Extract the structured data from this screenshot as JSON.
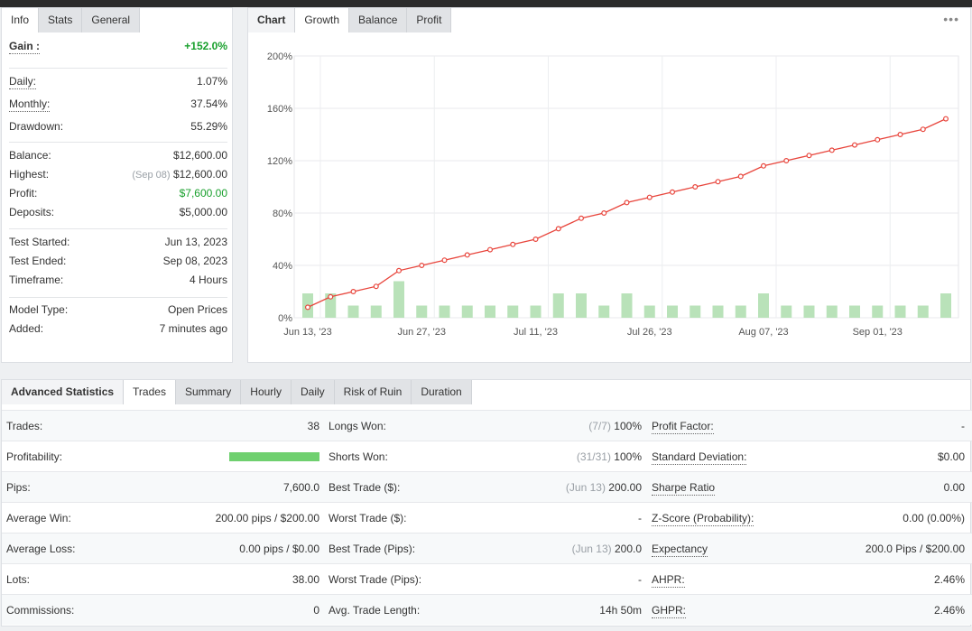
{
  "info_panel": {
    "tabs": [
      {
        "label": "Info"
      },
      {
        "label": "Stats"
      },
      {
        "label": "General"
      }
    ],
    "gain": {
      "label": "Gain :",
      "value": "+152.0%"
    },
    "daily": {
      "label": "Daily:",
      "value": "1.07%"
    },
    "monthly": {
      "label": "Monthly:",
      "value": "37.54%"
    },
    "drawdown": {
      "label": "Drawdown:",
      "value": "55.29%"
    },
    "balance": {
      "label": "Balance:",
      "value": "$12,600.00"
    },
    "highest": {
      "label": "Highest:",
      "date": "(Sep 08)",
      "value": "$12,600.00"
    },
    "profit": {
      "label": "Profit:",
      "value": "$7,600.00"
    },
    "deposits": {
      "label": "Deposits:",
      "value": "$5,000.00"
    },
    "test_started": {
      "label": "Test Started:",
      "value": "Jun 13, 2023"
    },
    "test_ended": {
      "label": "Test Ended:",
      "value": "Sep 08, 2023"
    },
    "timeframe": {
      "label": "Timeframe:",
      "value": "4 Hours"
    },
    "model_type": {
      "label": "Model Type:",
      "value": "Open Prices"
    },
    "added": {
      "label": "Added:",
      "value": "7 minutes ago"
    }
  },
  "chart_panel": {
    "tabs": [
      {
        "label": "Chart"
      },
      {
        "label": "Growth"
      },
      {
        "label": "Balance"
      },
      {
        "label": "Profit"
      }
    ],
    "more_icon": "•••"
  },
  "chart_data": {
    "type": "line",
    "yticks": [
      "0%",
      "40%",
      "80%",
      "120%",
      "160%",
      "200%"
    ],
    "ylim": [
      0,
      200
    ],
    "xticks": [
      "Jun 13, '23",
      "Jun 27, '23",
      "Jul 11, '23",
      "Jul 26, '23",
      "Aug 07, '23",
      "Sep 01, '23"
    ],
    "grid": true,
    "line_color": "#e8453c",
    "bar_color": "#b9e2b9",
    "series": [
      {
        "values": [
          8,
          16,
          20,
          24,
          36,
          40,
          44,
          48,
          52,
          56,
          60,
          68,
          76,
          80,
          88,
          92,
          96,
          100,
          104,
          108,
          116,
          120,
          124,
          128,
          132,
          136,
          140,
          144,
          152
        ]
      },
      {
        "type": "bar",
        "values": [
          2,
          2,
          1,
          1,
          3,
          1,
          1,
          1,
          1,
          1,
          1,
          2,
          2,
          1,
          2,
          1,
          1,
          1,
          1,
          1,
          2,
          1,
          1,
          1,
          1,
          1,
          1,
          1,
          2
        ]
      }
    ]
  },
  "advanced": {
    "tabs": [
      {
        "label": "Advanced Statistics"
      },
      {
        "label": "Trades"
      },
      {
        "label": "Summary"
      },
      {
        "label": "Hourly"
      },
      {
        "label": "Daily"
      },
      {
        "label": "Risk of Ruin"
      },
      {
        "label": "Duration"
      }
    ],
    "rows": [
      {
        "c1_label": "Trades:",
        "c1_value": "38",
        "c2_label": "Longs Won:",
        "c2_muted": "(7/7)",
        "c2_value": "100%",
        "c3_label": "Profit Factor:",
        "c3_value": "-"
      },
      {
        "c1_label": "Profitability:",
        "c1_value": "100",
        "c2_label": "Shorts Won:",
        "c2_muted": "(31/31)",
        "c2_value": "100%",
        "c3_label": "Standard Deviation:",
        "c3_value": "$0.00"
      },
      {
        "c1_label": "Pips:",
        "c1_value": "7,600.0",
        "c2_label": "Best Trade ($):",
        "c2_muted": "(Jun 13)",
        "c2_value": "200.00",
        "c3_label": "Sharpe Ratio",
        "c3_value": "0.00"
      },
      {
        "c1_label": "Average Win:",
        "c1_value": "200.00 pips / $200.00",
        "c2_label": "Worst Trade ($):",
        "c2_muted": "",
        "c2_value": "-",
        "c3_label": "Z-Score (Probability):",
        "c3_value": "0.00 (0.00%)"
      },
      {
        "c1_label": "Average Loss:",
        "c1_value": "0.00 pips / $0.00",
        "c2_label": "Best Trade (Pips):",
        "c2_muted": "(Jun 13)",
        "c2_value": "200.0",
        "c3_label": "Expectancy",
        "c3_value": "200.0 Pips / $200.00"
      },
      {
        "c1_label": "Lots:",
        "c1_value": "38.00",
        "c2_label": "Worst Trade (Pips):",
        "c2_muted": "",
        "c2_value": "-",
        "c3_label": "AHPR:",
        "c3_value": "2.46%"
      },
      {
        "c1_label": "Commissions:",
        "c1_value": "0",
        "c2_label": "Avg. Trade Length:",
        "c2_muted": "",
        "c2_value": "14h 50m",
        "c3_label": "GHPR:",
        "c3_value": "2.46%"
      }
    ]
  }
}
